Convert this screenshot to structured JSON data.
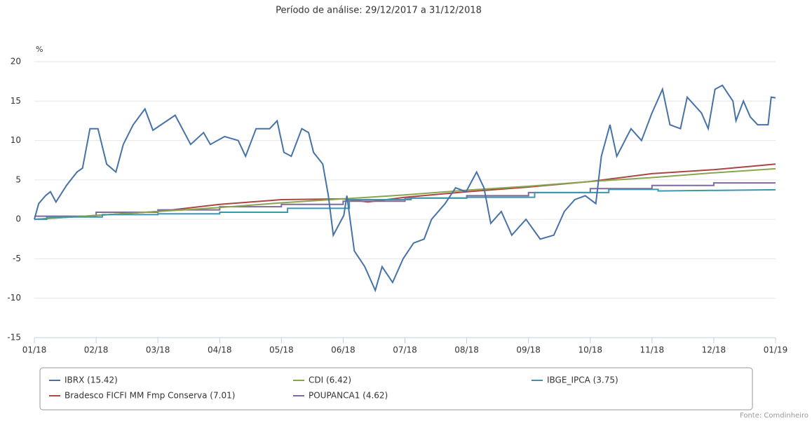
{
  "chart_data": {
    "type": "line",
    "title": "Período de análise: 29/12/2017 a 31/12/2018",
    "y_label": "%",
    "source": "Fonte: Comdinheiro",
    "xlim": [
      0,
      12
    ],
    "xticks": [
      {
        "value": 0,
        "label": "01/18"
      },
      {
        "value": 1,
        "label": "02/18"
      },
      {
        "value": 2,
        "label": "03/18"
      },
      {
        "value": 3,
        "label": "04/18"
      },
      {
        "value": 4,
        "label": "05/18"
      },
      {
        "value": 5,
        "label": "06/18"
      },
      {
        "value": 6,
        "label": "07/18"
      },
      {
        "value": 7,
        "label": "08/18"
      },
      {
        "value": 8,
        "label": "09/18"
      },
      {
        "value": 9,
        "label": "10/18"
      },
      {
        "value": 10,
        "label": "11/18"
      },
      {
        "value": 11,
        "label": "12/18"
      },
      {
        "value": 12,
        "label": "01/19"
      }
    ],
    "ylim": [
      -15,
      20
    ],
    "yticks": [
      -15,
      -10,
      -5,
      0,
      5,
      10,
      15,
      20
    ],
    "grid": true,
    "series": [
      {
        "name": "IBRX (15.42)",
        "color": "#4572a7",
        "x": [
          0,
          0.07,
          0.18,
          0.26,
          0.35,
          0.52,
          0.69,
          0.78,
          0.9,
          1.03,
          1.17,
          1.32,
          1.44,
          1.6,
          1.79,
          1.92,
          2.28,
          2.53,
          2.74,
          2.85,
          3.08,
          3.3,
          3.42,
          3.59,
          3.81,
          3.93,
          4.04,
          4.16,
          4.33,
          4.44,
          4.52,
          4.67,
          4.76,
          4.84,
          5.01,
          5.06,
          5.18,
          5.35,
          5.52,
          5.63,
          5.8,
          5.97,
          6.14,
          6.31,
          6.43,
          6.65,
          6.82,
          6.99,
          7.16,
          7.28,
          7.39,
          7.56,
          7.73,
          7.96,
          8.19,
          8.41,
          8.58,
          8.75,
          8.92,
          9.09,
          9.18,
          9.32,
          9.43,
          9.66,
          9.83,
          10,
          10.17,
          10.29,
          10.46,
          10.57,
          10.8,
          10.91,
          11.02,
          11.14,
          11.31,
          11.36,
          11.48,
          11.59,
          11.71,
          11.88,
          11.93,
          12
        ],
        "values": [
          0,
          2,
          3,
          3.5,
          2.2,
          4.3,
          6,
          6.5,
          11.5,
          11.5,
          7,
          6,
          9.5,
          12,
          14,
          11.3,
          13.2,
          9.5,
          11,
          9.5,
          10.5,
          10,
          8,
          11.5,
          11.5,
          12.5,
          8.5,
          8,
          11.5,
          11,
          8.5,
          7,
          3,
          -2,
          0.5,
          3,
          -4,
          -6,
          -9,
          -6,
          -8,
          -5,
          -3,
          -2.5,
          0,
          2,
          4,
          3.5,
          6,
          4,
          -0.5,
          1,
          -2,
          0,
          -2.5,
          -2,
          1,
          2.5,
          3,
          2,
          8,
          12,
          8,
          11.5,
          10,
          13.5,
          16.5,
          12,
          11.5,
          15.5,
          13.5,
          11.5,
          16.5,
          17,
          15,
          12.5,
          15,
          13,
          12,
          12,
          15.5,
          15.42
        ]
      },
      {
        "name": "CDI (6.42)",
        "color": "#89a54e",
        "x": [
          0,
          1,
          2,
          3,
          4,
          5,
          6,
          7,
          8,
          9,
          10,
          11,
          12
        ],
        "values": [
          0,
          0.5,
          1.0,
          1.5,
          2.1,
          2.6,
          3.1,
          3.7,
          4.2,
          4.8,
          5.3,
          5.9,
          6.42
        ]
      },
      {
        "name": "IBGE_IPCA (3.75)",
        "color": "#3d96ae",
        "x": [
          0,
          0.2,
          0.2,
          1.1,
          1.1,
          2,
          2,
          3,
          3,
          4.1,
          4.1,
          5.1,
          5.1,
          6.1,
          6.1,
          7,
          7,
          8.1,
          8.1,
          9.3,
          9.3,
          10.1,
          10.1,
          12
        ],
        "values": [
          0,
          0,
          0.3,
          0.3,
          0.6,
          0.6,
          0.7,
          0.7,
          0.9,
          0.9,
          1.4,
          1.4,
          2.5,
          2.5,
          2.7,
          2.7,
          2.8,
          2.8,
          3.4,
          3.4,
          3.8,
          3.8,
          3.6,
          3.75
        ]
      },
      {
        "name": "Bradesco FICFI MM Fmp Conserva (7.01)",
        "color": "#aa4643",
        "x": [
          0,
          1,
          2,
          3,
          4,
          5,
          5.4,
          6,
          7,
          8,
          9,
          10,
          11,
          12
        ],
        "values": [
          0,
          0.5,
          1,
          1.9,
          2.5,
          2.6,
          2.2,
          2.8,
          3.5,
          4.1,
          4.8,
          5.8,
          6.3,
          7.01
        ]
      },
      {
        "name": "POUPANCA1 (4.62)",
        "color": "#80699b",
        "x": [
          0,
          1,
          1,
          2,
          2,
          3,
          3,
          4,
          4,
          5,
          5,
          6,
          6,
          7,
          7,
          8,
          8,
          9,
          9,
          10,
          10,
          11,
          11,
          12
        ],
        "values": [
          0.4,
          0.4,
          0.9,
          0.9,
          1.2,
          1.2,
          1.6,
          1.6,
          1.9,
          1.9,
          2.3,
          2.3,
          2.7,
          2.7,
          3.0,
          3.0,
          3.4,
          3.4,
          3.9,
          3.9,
          4.3,
          4.3,
          4.62,
          4.62
        ]
      }
    ]
  }
}
